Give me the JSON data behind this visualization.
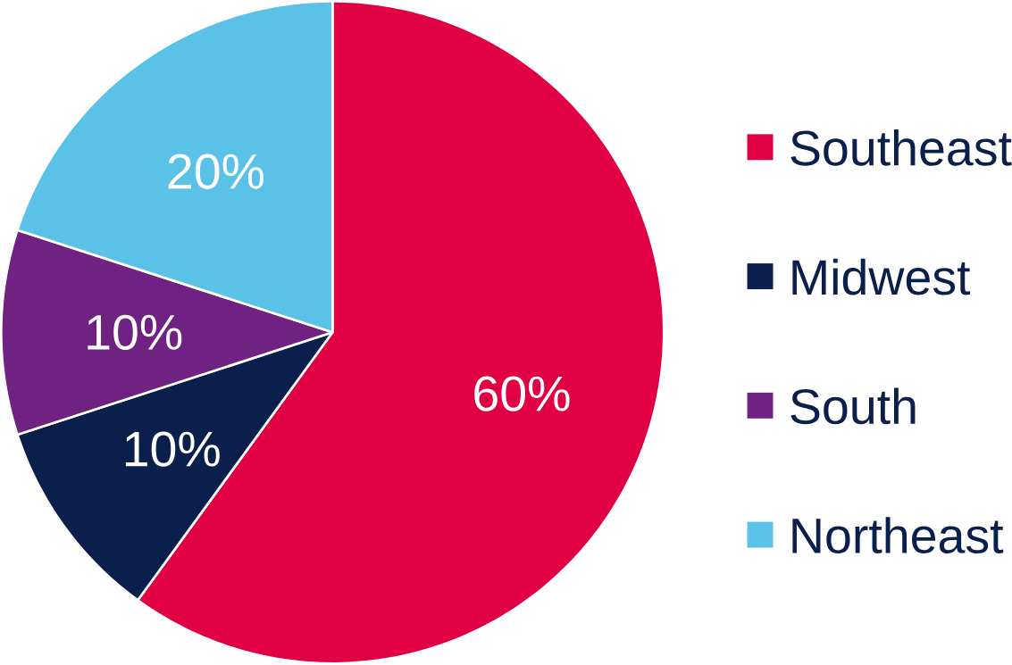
{
  "chart_data": {
    "type": "pie",
    "categories": [
      "Southeast",
      "Midwest",
      "South",
      "Northeast"
    ],
    "values": [
      60,
      10,
      10,
      20
    ],
    "colors": [
      "#e10044",
      "#0a1f4b",
      "#6f2282",
      "#5bc2e7"
    ],
    "value_labels": [
      "60%",
      "10%",
      "10%",
      "20%"
    ],
    "legend": "right"
  }
}
